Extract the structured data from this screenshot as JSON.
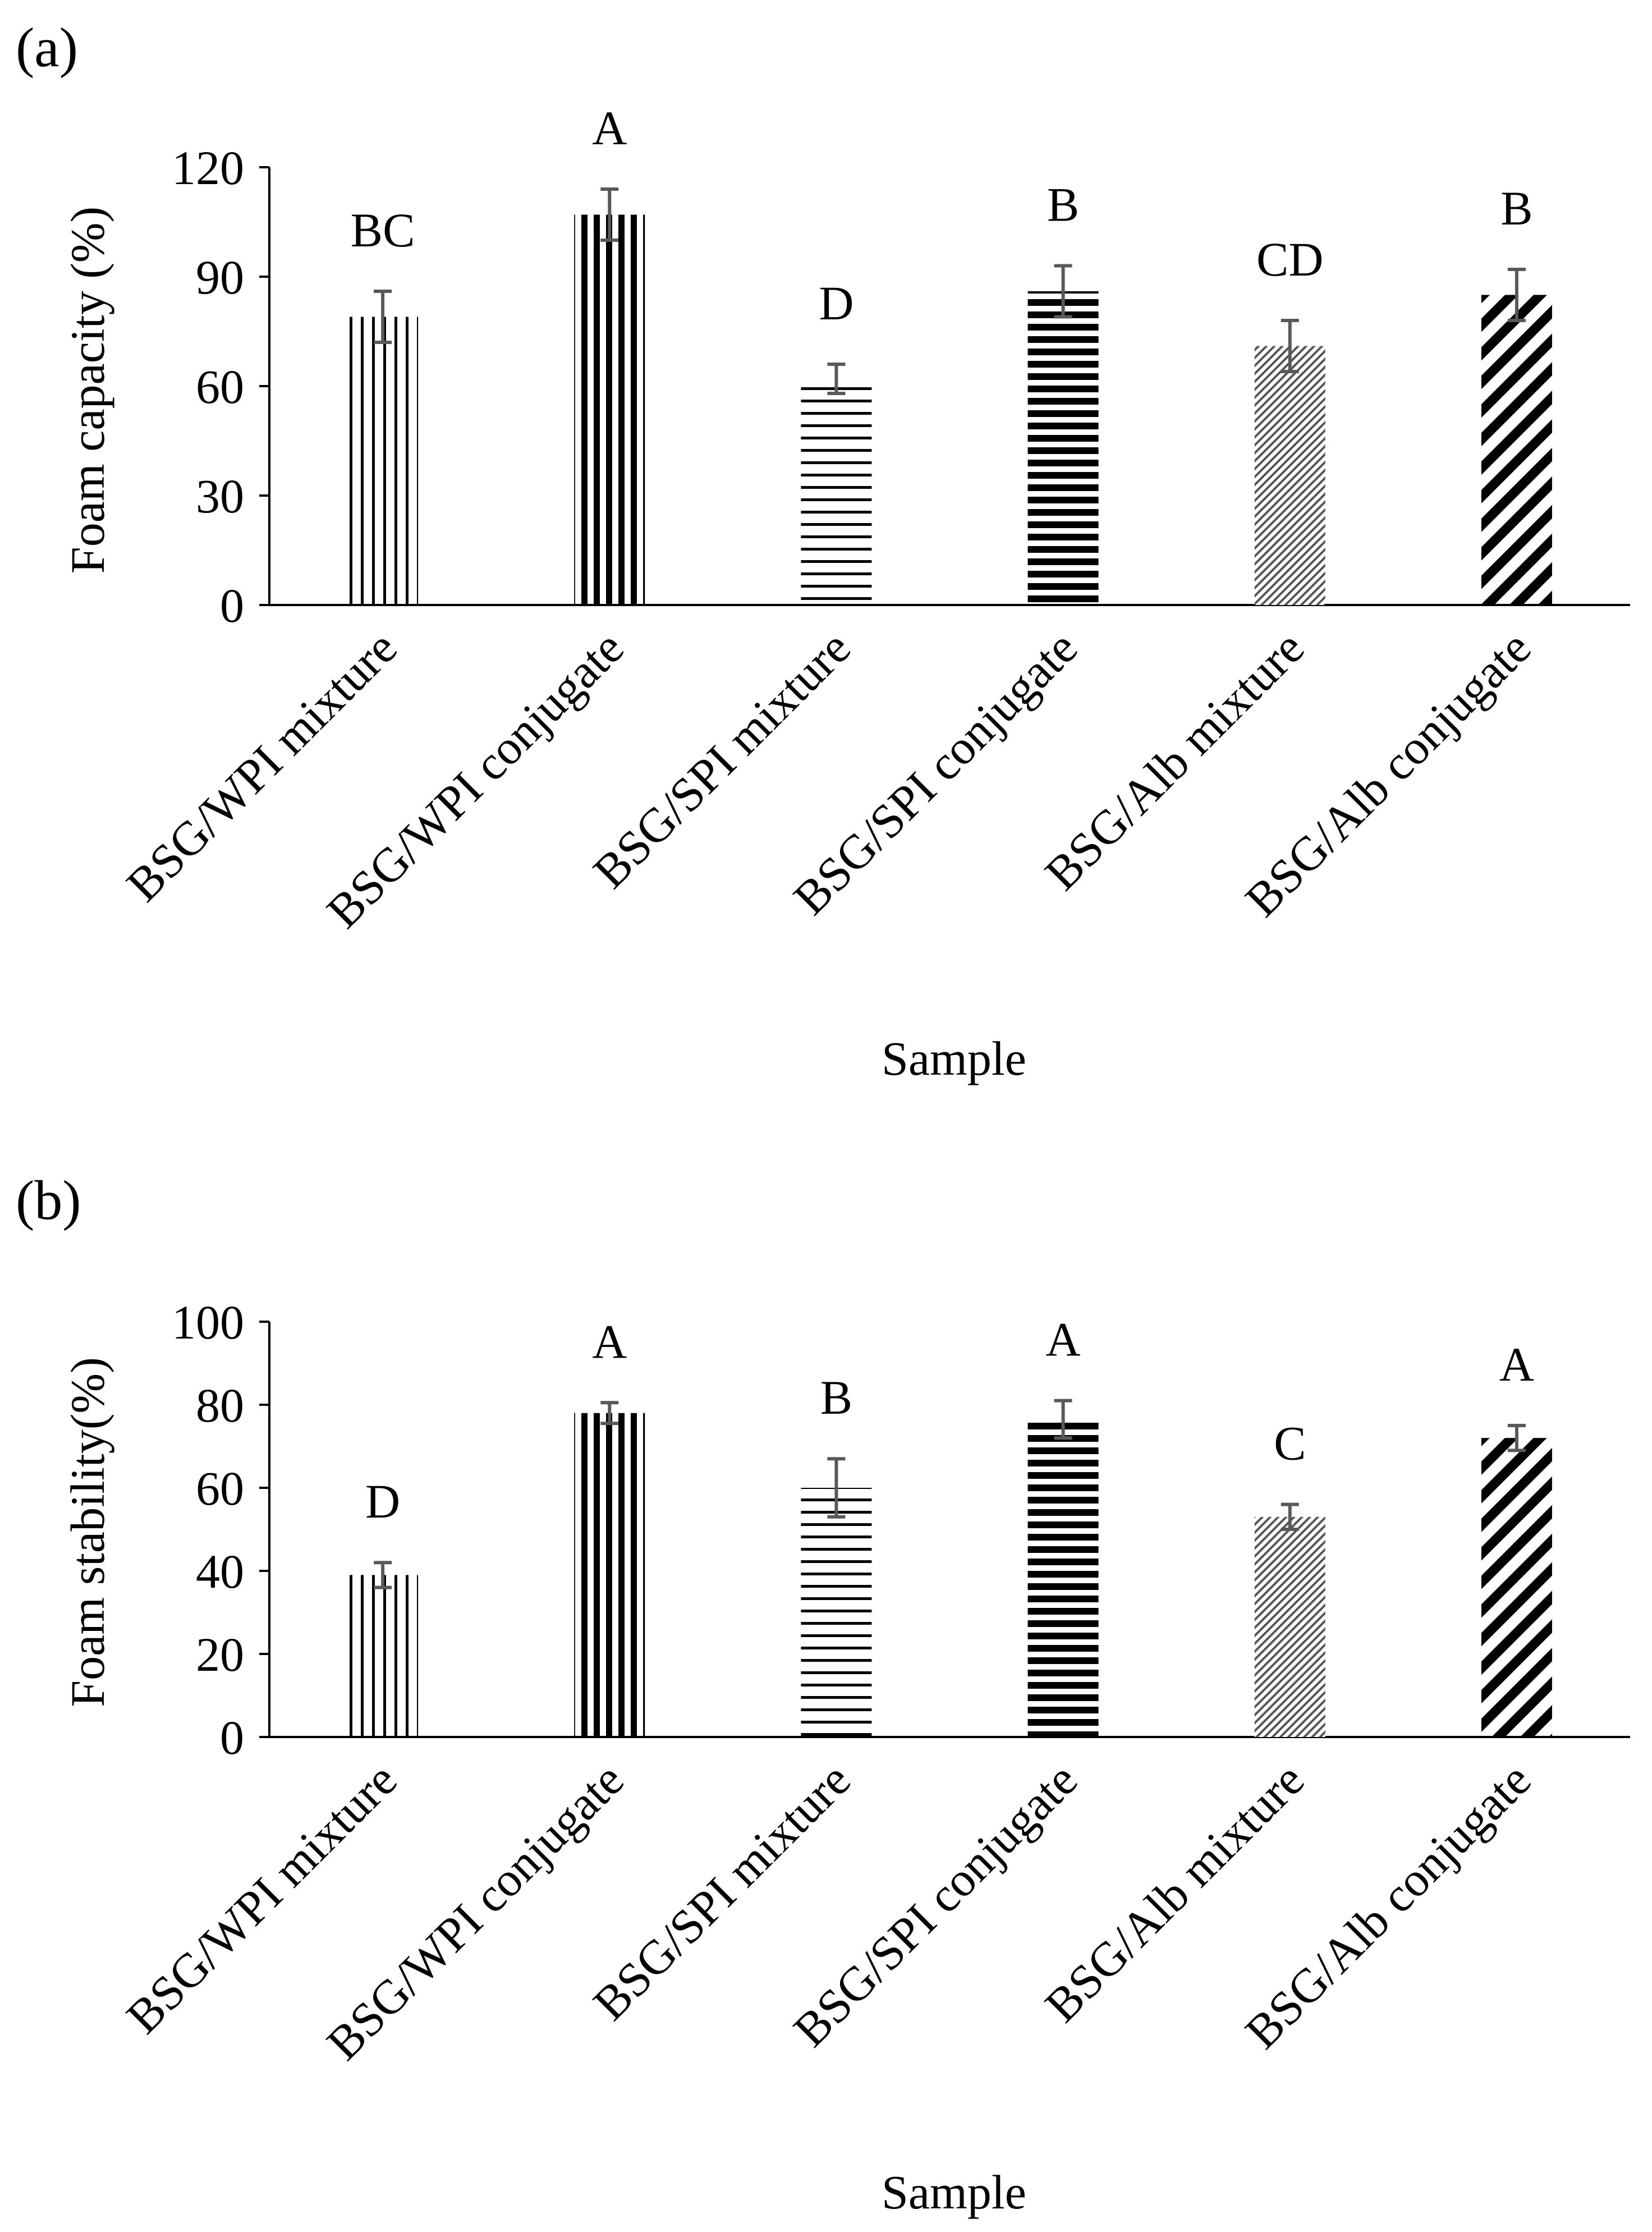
{
  "chart_data": [
    {
      "type": "bar",
      "panel_label": "(a)",
      "title": "",
      "xlabel": "Sample",
      "ylabel": "Foam capacity (%)",
      "ylim": [
        0,
        120
      ],
      "yticks": [
        0,
        30,
        60,
        90,
        120
      ],
      "grid": false,
      "categories": [
        "BSG/WPI mixture",
        "BSG/WPI conjugate",
        "BSG/SPI mixture",
        "BSG/SPI conjugate",
        "BSG/Alb mixture",
        "BSG/Alb conjugate"
      ],
      "values": [
        79,
        107,
        62,
        86,
        71,
        85
      ],
      "errors": [
        7,
        7,
        4,
        7,
        7,
        7
      ],
      "significance": [
        "BC",
        "A",
        "D",
        "B",
        "CD",
        "B"
      ],
      "patterns": [
        "vlines-thin",
        "vlines-thick",
        "hlines-thin",
        "hlines-thick",
        "diag-fine",
        "diag-thick"
      ]
    },
    {
      "type": "bar",
      "panel_label": "(b)",
      "title": "",
      "xlabel": "Sample",
      "ylabel": "Foam stability(%)",
      "ylim": [
        0,
        100
      ],
      "yticks": [
        0,
        20,
        40,
        60,
        80,
        100
      ],
      "grid": false,
      "categories": [
        "BSG/WPI mixture",
        "BSG/WPI conjugate",
        "BSG/SPI mixture",
        "BSG/SPI conjugate",
        "BSG/Alb mixture",
        "BSG/Alb conjugate"
      ],
      "values": [
        39,
        78,
        60,
        76.5,
        53,
        72
      ],
      "errors": [
        3,
        2.5,
        7,
        4.5,
        3,
        3
      ],
      "significance": [
        "D",
        "A",
        "B",
        "A",
        "C",
        "A"
      ],
      "patterns": [
        "vlines-thin",
        "vlines-thick",
        "hlines-thin",
        "hlines-thick",
        "diag-fine",
        "diag-thick"
      ]
    }
  ]
}
